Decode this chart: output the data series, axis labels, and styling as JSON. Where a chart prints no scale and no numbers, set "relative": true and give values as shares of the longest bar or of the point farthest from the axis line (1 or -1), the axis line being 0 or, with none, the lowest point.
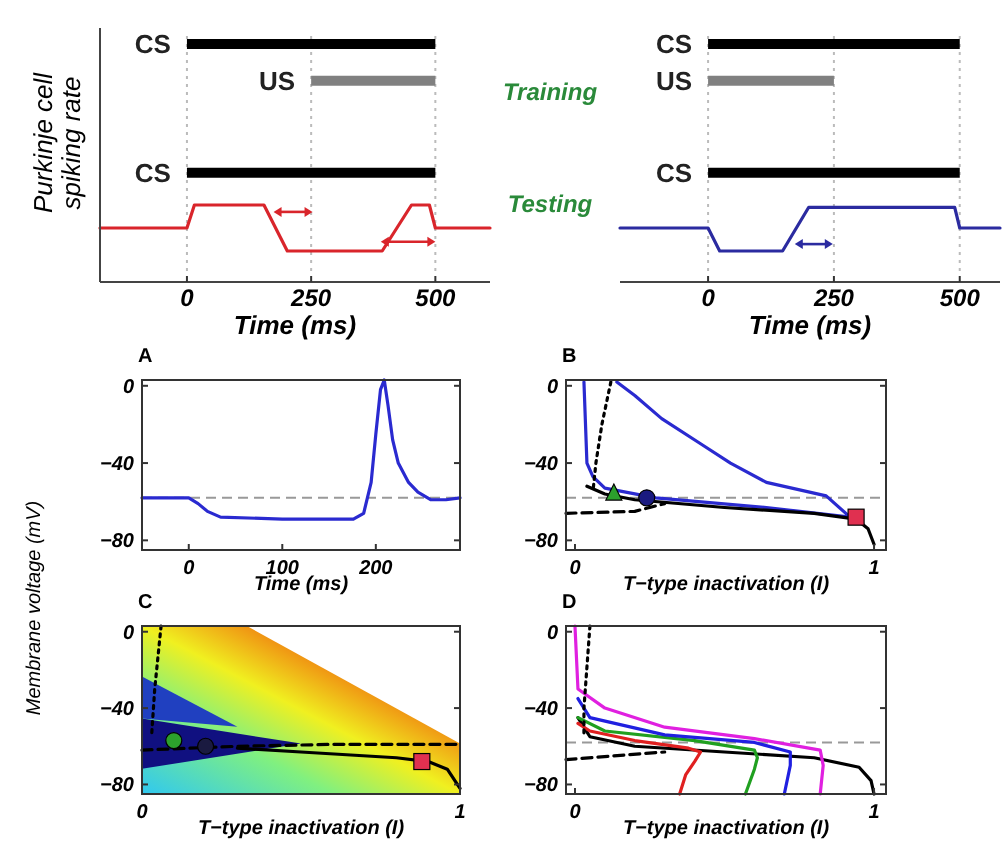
{
  "chart_data": [
    {
      "type": "line",
      "ylabel": "Purkinje cell spiking rate",
      "xlabel": "Time (ms)",
      "relative": true,
      "xlim": [
        -175,
        610
      ],
      "xticks": [
        0,
        250,
        500
      ],
      "tick_labels": "x",
      "annotations": [
        "Training",
        "Testing"
      ],
      "ref_lines": [
        {
          "axis": "x",
          "value": 0,
          "color": "#bbbbbb",
          "line_style": "dotted"
        },
        {
          "axis": "x",
          "value": 250,
          "color": "#bbbbbb",
          "line_style": "dotted"
        },
        {
          "axis": "x",
          "value": 500,
          "color": "#bbbbbb",
          "line_style": "dotted"
        }
      ],
      "series": [
        {
          "name": "CS",
          "color": "#000000",
          "x": [
            0,
            500
          ],
          "values": [
            1,
            1
          ]
        },
        {
          "name": "US",
          "color": "#808080",
          "x": [
            250,
            500
          ],
          "values": [
            0.84,
            0.84
          ]
        },
        {
          "name": "CS",
          "color": "#000000",
          "x": [
            0,
            500
          ],
          "values": [
            0.44,
            0.44
          ]
        },
        {
          "color": "#d9252b",
          "x": [
            -175,
            0,
            15,
            155,
            202,
            393,
            452,
            488,
            500,
            610
          ],
          "values": [
            0.2,
            0.2,
            0.3,
            0.3,
            0.1,
            0.1,
            0.3,
            0.3,
            0.2,
            0.2
          ]
        }
      ]
    },
    {
      "type": "line",
      "xlabel": "Time (ms)",
      "relative": true,
      "xlim": [
        -175,
        580
      ],
      "xticks": [
        0,
        250,
        500
      ],
      "tick_labels": "x",
      "ref_lines": [
        {
          "axis": "x",
          "value": 0,
          "color": "#bbbbbb",
          "line_style": "dotted"
        },
        {
          "axis": "x",
          "value": 250,
          "color": "#bbbbbb",
          "line_style": "dotted"
        },
        {
          "axis": "x",
          "value": 500,
          "color": "#bbbbbb",
          "line_style": "dotted"
        }
      ],
      "series": [
        {
          "name": "CS",
          "color": "#000000",
          "x": [
            0,
            500
          ],
          "values": [
            1,
            1
          ]
        },
        {
          "name": "US",
          "color": "#808080",
          "x": [
            0,
            250
          ],
          "values": [
            0.84,
            0.84
          ]
        },
        {
          "name": "CS",
          "color": "#000000",
          "x": [
            0,
            500
          ],
          "values": [
            0.44,
            0.44
          ]
        },
        {
          "color": "#2b2ba0",
          "x": [
            -175,
            0,
            23,
            148,
            200,
            490,
            500,
            580
          ],
          "values": [
            0.2,
            0.2,
            0.1,
            0.1,
            0.29,
            0.29,
            0.2,
            0.2
          ]
        }
      ]
    },
    {
      "type": "line",
      "title": "A",
      "xlabel": "Time (ms)",
      "ylabel": "Membrane voltage (mV)",
      "xlim": [
        -50,
        290
      ],
      "xticks": [
        0,
        100,
        200
      ],
      "ylim": [
        -85,
        3
      ],
      "yticks": [
        0,
        -40,
        -80
      ],
      "ref_lines": [
        {
          "axis": "y",
          "value": -58,
          "color": "#999999",
          "line_style": "dashed"
        }
      ],
      "series": [
        {
          "color": "#2a2ad0",
          "x": [
            -50,
            0,
            10,
            20,
            34,
            100,
            176,
            187,
            195,
            200,
            205,
            209,
            213,
            218,
            224,
            235,
            245,
            259,
            275,
            290
          ],
          "values": [
            -58,
            -58,
            -61,
            -65,
            -68,
            -69,
            -69,
            -66,
            -50,
            -25,
            -2,
            3,
            -10,
            -28,
            -40,
            -50,
            -55,
            -59,
            -59,
            -58
          ]
        }
      ]
    },
    {
      "type": "line",
      "title": "B",
      "xlabel": "T−type inactivation (I)",
      "xlim": [
        -0.03,
        1.04
      ],
      "xticks": [
        0,
        1
      ],
      "ylim": [
        -85,
        3
      ],
      "yticks": [
        0,
        -40,
        -80
      ],
      "ref_lines": [
        {
          "axis": "y",
          "value": -58,
          "color": "#999999",
          "line_style": "dashed"
        }
      ],
      "series": [
        {
          "color": "#2a2ad0",
          "x": [
            0.03,
            0.04,
            0.06,
            0.1,
            0.27,
            0.64,
            0.92,
            0.84,
            0.64,
            0.52,
            0.42,
            0.29,
            0.2,
            0.14
          ],
          "values": [
            2,
            -40,
            -47,
            -53,
            -58,
            -63,
            -68,
            -57,
            -50,
            -40,
            -30,
            -17,
            -5,
            2
          ]
        },
        {
          "color": "#000000",
          "x": [
            0.04,
            0.1,
            0.2,
            0.5,
            0.8,
            0.94,
            0.98,
            1.0
          ],
          "values": [
            -52,
            -56,
            -59,
            -63,
            -66,
            -69,
            -74,
            -82
          ]
        },
        {
          "color": "#000000",
          "line_style": "dotted",
          "x": [
            0.12,
            0.09,
            0.07,
            0.06
          ],
          "values": [
            2,
            -20,
            -40,
            -55
          ]
        },
        {
          "color": "#000000",
          "line_style": "dashed",
          "x": [
            -0.03,
            0.2,
            0.3
          ],
          "values": [
            -66,
            -65,
            -61
          ]
        },
        {
          "type": "scatter",
          "marker": "triangle",
          "color": "#2ca02c",
          "x": [
            0.13
          ],
          "values": [
            -55
          ]
        },
        {
          "type": "scatter",
          "marker": "circle",
          "color": "#1a1a80",
          "x": [
            0.24
          ],
          "values": [
            -58
          ]
        },
        {
          "type": "scatter",
          "marker": "square",
          "color": "#e03050",
          "x": [
            0.94
          ],
          "values": [
            -68
          ]
        }
      ]
    },
    {
      "type": "line",
      "title": "C",
      "xlabel": "T−type inactivation (I)",
      "xlim": [
        0,
        1
      ],
      "xticks": [
        0,
        1
      ],
      "ylim": [
        -85,
        3
      ],
      "yticks": [
        0,
        -40,
        -80
      ],
      "series": [
        {
          "color": "#000000",
          "line_style": "dotted",
          "x": [
            0.06,
            0.04,
            0.03
          ],
          "values": [
            3,
            -30,
            -55
          ]
        },
        {
          "color": "#000000",
          "line_style": "dashed",
          "x": [
            0.0,
            0.3,
            0.6,
            1.0
          ],
          "values": [
            -62,
            -60,
            -59,
            -59
          ]
        },
        {
          "color": "#000000",
          "x": [
            0.3,
            0.5,
            0.8,
            0.9,
            0.96,
            1.0
          ],
          "values": [
            -61,
            -63,
            -66,
            -68,
            -72,
            -82
          ]
        },
        {
          "type": "scatter",
          "marker": "circle",
          "color": "#2ca02c",
          "x": [
            0.1
          ],
          "values": [
            -57
          ]
        },
        {
          "type": "scatter",
          "marker": "circle",
          "color": "#1a1a40",
          "x": [
            0.2
          ],
          "values": [
            -60
          ]
        },
        {
          "type": "scatter",
          "marker": "square",
          "color": "#e03050",
          "x": [
            0.88
          ],
          "values": [
            -68
          ]
        }
      ]
    },
    {
      "type": "line",
      "title": "D",
      "xlabel": "T−type inactivation (I)",
      "xlim": [
        -0.03,
        1.04
      ],
      "xticks": [
        0,
        1
      ],
      "ylim": [
        -85,
        3
      ],
      "yticks": [
        0,
        -40,
        -80
      ],
      "ref_lines": [
        {
          "axis": "y",
          "value": -58,
          "color": "#999999",
          "line_style": "dashed"
        }
      ],
      "series": [
        {
          "color": "#000000",
          "x": [
            0.01,
            0.05,
            0.2,
            0.5,
            0.8,
            0.95,
            0.99,
            1.0
          ],
          "values": [
            -45,
            -55,
            -60,
            -63,
            -66,
            -71,
            -78,
            -85
          ]
        },
        {
          "color": "#e02020",
          "x": [
            0.01,
            0.05,
            0.2,
            0.38,
            0.42,
            0.4,
            0.37,
            0.35
          ],
          "values": [
            -48,
            -52,
            -57,
            -61,
            -63,
            -68,
            -75,
            -85
          ]
        },
        {
          "color": "#20a020",
          "x": [
            0.01,
            0.1,
            0.4,
            0.6,
            0.61,
            0.6,
            0.57
          ],
          "values": [
            -45,
            -52,
            -57,
            -62,
            -66,
            -72,
            -85
          ]
        },
        {
          "color": "#2020e0",
          "x": [
            0.01,
            0.05,
            0.3,
            0.6,
            0.72,
            0.72,
            0.7
          ],
          "values": [
            -35,
            -45,
            -54,
            -58,
            -63,
            -70,
            -85
          ]
        },
        {
          "color": "#e020e0",
          "x": [
            0.0,
            0.01,
            0.1,
            0.3,
            0.6,
            0.82,
            0.83,
            0.82
          ],
          "values": [
            3,
            -30,
            -40,
            -50,
            -56,
            -62,
            -70,
            -85
          ]
        },
        {
          "color": "#000000",
          "line_style": "dotted",
          "x": [
            0.05,
            0.03,
            0.03
          ],
          "values": [
            3,
            -40,
            -55
          ]
        },
        {
          "color": "#000000",
          "line_style": "dashed",
          "x": [
            -0.03,
            0.3
          ],
          "values": [
            -67,
            -63
          ]
        }
      ]
    }
  ]
}
